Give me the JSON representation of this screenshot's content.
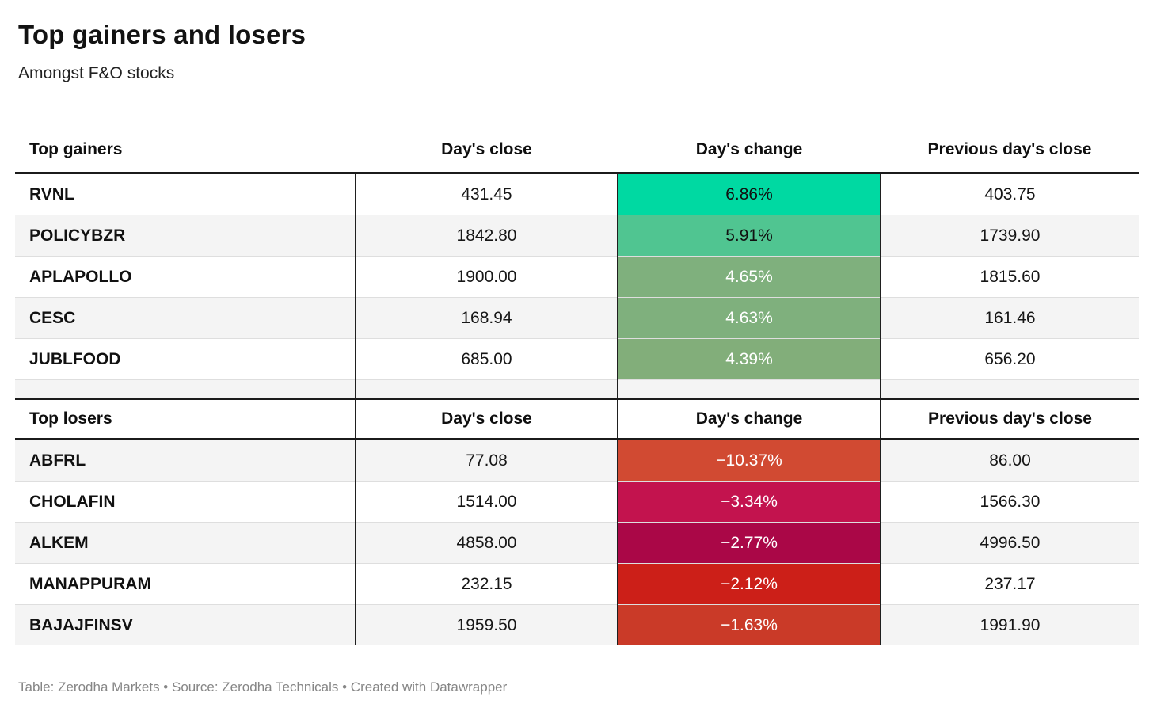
{
  "header": {
    "title": "Top gainers and losers",
    "subtitle": "Amongst F&O stocks"
  },
  "gainers": {
    "columns": [
      "Top gainers",
      "Day's close",
      "Day's change",
      "Previous day's close"
    ],
    "rows": [
      {
        "symbol": "RVNL",
        "close": "431.45",
        "change": "6.86%",
        "prev_close": "403.75",
        "change_bg": "#00d9a2",
        "change_fg": "#111111"
      },
      {
        "symbol": "POLICYBZR",
        "close": "1842.80",
        "change": "5.91%",
        "prev_close": "1739.90",
        "change_bg": "#50c591",
        "change_fg": "#111111"
      },
      {
        "symbol": "APLAPOLLO",
        "close": "1900.00",
        "change": "4.65%",
        "prev_close": "1815.60",
        "change_bg": "#7fb07d",
        "change_fg": "#ffffff"
      },
      {
        "symbol": "CESC",
        "close": "168.94",
        "change": "4.63%",
        "prev_close": "161.46",
        "change_bg": "#7fb07d",
        "change_fg": "#ffffff"
      },
      {
        "symbol": "JUBLFOOD",
        "close": "685.00",
        "change": "4.39%",
        "prev_close": "656.20",
        "change_bg": "#82ae7a",
        "change_fg": "#ffffff"
      }
    ]
  },
  "losers": {
    "columns": [
      "Top losers",
      "Day's close",
      "Day's change",
      "Previous day's close"
    ],
    "rows": [
      {
        "symbol": "ABFRL",
        "close": "77.08",
        "change": "−10.37%",
        "prev_close": "86.00",
        "change_bg": "#d14a32",
        "change_fg": "#ffffff"
      },
      {
        "symbol": "CHOLAFIN",
        "close": "1514.00",
        "change": "−3.34%",
        "prev_close": "1566.30",
        "change_bg": "#c3134e",
        "change_fg": "#ffffff"
      },
      {
        "symbol": "ALKEM",
        "close": "4858.00",
        "change": "−2.77%",
        "prev_close": "4996.50",
        "change_bg": "#aa0747",
        "change_fg": "#ffffff"
      },
      {
        "symbol": "MANAPPURAM",
        "close": "232.15",
        "change": "−2.12%",
        "prev_close": "237.17",
        "change_bg": "#cc1f18",
        "change_fg": "#ffffff"
      },
      {
        "symbol": "BAJAJFINSV",
        "close": "1959.50",
        "change": "−1.63%",
        "prev_close": "1991.90",
        "change_bg": "#ca3a28",
        "change_fg": "#ffffff"
      }
    ]
  },
  "footer": {
    "byline": "Table: Zerodha Markets • Source: Zerodha Technicals • Created with Datawrapper"
  },
  "colors": {
    "row_alt_background": "#f4f4f4",
    "thick_border": "#1b1b1b",
    "vertical_separator": "#1f1f1f",
    "row_separator": "#dedede",
    "footer_text": "#868686"
  },
  "chart_data": {
    "type": "table",
    "title": "Top gainers and losers",
    "subtitle": "Amongst F&O stocks",
    "byline": "Table: Zerodha Markets • Source: Zerodha Technicals • Created with Datawrapper",
    "tables": [
      {
        "section": "Top gainers",
        "columns": [
          "Top gainers",
          "Day's close",
          "Day's change",
          "Previous day's close"
        ],
        "rows": [
          [
            "RVNL",
            431.45,
            "6.86%",
            403.75
          ],
          [
            "POLICYBZR",
            1842.8,
            "5.91%",
            1739.9
          ],
          [
            "APLAPOLLO",
            1900.0,
            "4.65%",
            1815.6
          ],
          [
            "CESC",
            168.94,
            "4.63%",
            161.46
          ],
          [
            "JUBLFOOD",
            685.0,
            "4.39%",
            656.2
          ]
        ],
        "change_cell_colors": [
          "#00d9a2",
          "#50c591",
          "#7fb07d",
          "#7fb07d",
          "#82ae7a"
        ]
      },
      {
        "section": "Top losers",
        "columns": [
          "Top losers",
          "Day's close",
          "Day's change",
          "Previous day's close"
        ],
        "rows": [
          [
            "ABFRL",
            77.08,
            "-10.37%",
            86.0
          ],
          [
            "CHOLAFIN",
            1514.0,
            "-3.34%",
            1566.3
          ],
          [
            "ALKEM",
            4858.0,
            "-2.77%",
            4996.5
          ],
          [
            "MANAPPURAM",
            232.15,
            "-2.12%",
            237.17
          ],
          [
            "BAJAJFINSV",
            1959.5,
            "-1.63%",
            1991.9
          ]
        ],
        "change_cell_colors": [
          "#d14a32",
          "#c3134e",
          "#aa0747",
          "#cc1f18",
          "#ca3a28"
        ]
      }
    ],
    "layout_hints": {
      "value_alignment": "center",
      "symbol_alignment": "left",
      "heatmap_column": "Day's change"
    }
  }
}
